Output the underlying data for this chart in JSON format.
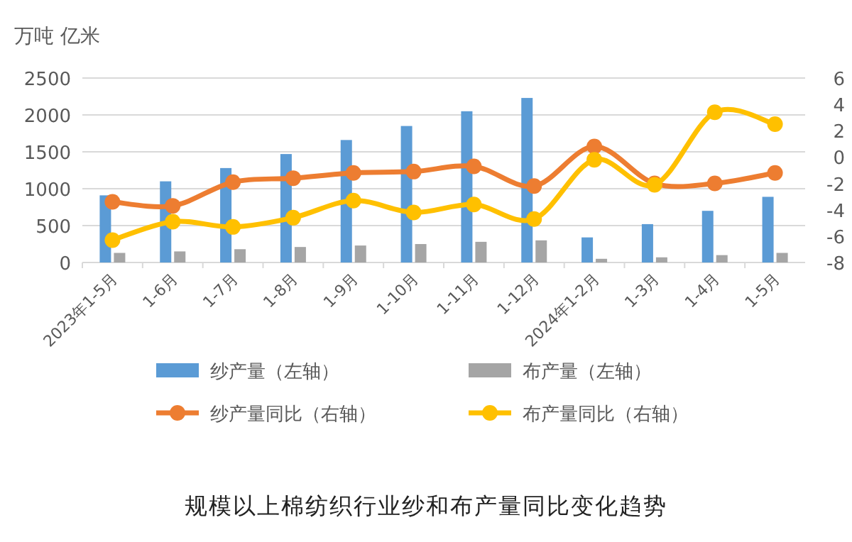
{
  "chart_data": {
    "type": "bar",
    "title": "规模以上棉纺织行业纱和布产量同比变化趋势",
    "ylabel": "万吨 亿米",
    "categories": [
      "2023年1-5月",
      "1-6月",
      "1-7月",
      "1-8月",
      "1-9月",
      "1-10月",
      "1-11月",
      "1-12月",
      "2024年1-2月",
      "1-3月",
      "1-4月",
      "1-5月"
    ],
    "series": [
      {
        "name": "纱产量（左轴）",
        "color": "#5b9bd5",
        "values": [
          910,
          1100,
          1280,
          1470,
          1660,
          1850,
          2050,
          2230,
          340,
          520,
          700,
          890
        ]
      },
      {
        "name": "布产量（左轴）",
        "color": "#a5a5a5",
        "values": [
          130,
          150,
          180,
          210,
          230,
          250,
          280,
          300,
          50,
          70,
          100,
          130
        ]
      },
      {
        "name": "纱产量同比（右轴）",
        "type": "line",
        "axis": "y2",
        "marker": "circle",
        "color": "#ed7d31",
        "values": [
          -3.4,
          -3.7,
          -1.9,
          -1.6,
          -1.2,
          -1.1,
          -0.7,
          -2.2,
          0.8,
          -2.0,
          -2.0,
          -1.2
        ]
      },
      {
        "name": "布产量同比（右轴）",
        "type": "line",
        "axis": "y2",
        "marker": "circle",
        "color": "#ffc000",
        "values": [
          -6.3,
          -4.9,
          -5.3,
          -4.6,
          -3.3,
          -4.2,
          -3.6,
          -4.7,
          -0.2,
          -2.1,
          3.4,
          2.5
        ]
      }
    ],
    "ylim": [
      0,
      2500
    ],
    "yticks": [
      0,
      500,
      1000,
      1500,
      2000,
      2500
    ],
    "y2lim": [
      -8,
      6
    ],
    "y2ticks": [
      -8,
      -6,
      -4,
      -2,
      0,
      2,
      4,
      6
    ],
    "grid": "y",
    "legend": "bottom"
  }
}
